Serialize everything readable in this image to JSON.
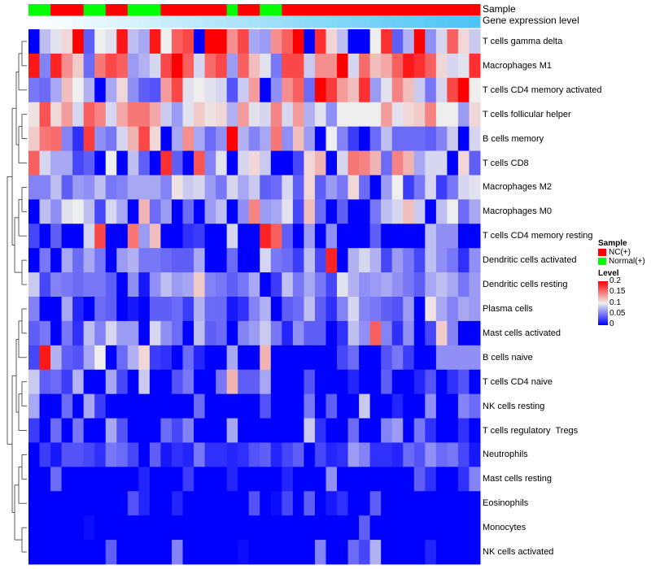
{
  "chart_data": {
    "type": "heatmap",
    "title": "",
    "annotations": {
      "sample_label": "Sample",
      "gene_label": "Gene expression level",
      "sample_groups": [
        "Normal(+)",
        "Normal(+)",
        "NC(+)",
        "NC(+)",
        "NC(+)",
        "Normal(+)",
        "Normal(+)",
        "NC(+)",
        "NC(+)",
        "Normal(+)",
        "Normal(+)",
        "Normal(+)",
        "NC(+)",
        "NC(+)",
        "NC(+)",
        "NC(+)",
        "NC(+)",
        "NC(+)",
        "Normal(+)",
        "NC(+)",
        "NC(+)",
        "Normal(+)",
        "Normal(+)",
        "NC(+)",
        "NC(+)",
        "NC(+)",
        "NC(+)",
        "NC(+)",
        "NC(+)",
        "NC(+)",
        "NC(+)",
        "NC(+)",
        "NC(+)",
        "NC(+)",
        "NC(+)",
        "NC(+)",
        "NC(+)",
        "NC(+)",
        "NC(+)",
        "NC(+)",
        "NC(+)"
      ],
      "gene_expression_gradient": [
        "#ffffff",
        "#4dc3f5"
      ]
    },
    "rows": [
      "T cells gamma delta",
      "Macrophages M1",
      "T cells CD4 memory activated",
      "T cells follicular helper",
      "B cells memory",
      "T cells CD8",
      "Macrophages M2",
      "Macrophages M0",
      "T cells CD4 memory resting",
      "Dendritic cells activated",
      "Dendritic cells resting",
      "Plasma cells",
      "Mast cells activated",
      "B cells naive",
      "T cells CD4 naive",
      "NK cells resting",
      "T cells regulatory  Tregs",
      "Neutrophils",
      "Mast cells resting",
      "Eosinophils",
      "Monocytes",
      "NK cells activated"
    ],
    "values": [
      [
        0,
        0.08,
        0.095,
        0.11,
        0.2,
        0.04,
        0.1,
        0.095,
        0.19,
        0.08,
        0.07,
        0.19,
        0.1,
        0.16,
        0.17,
        0,
        0.2,
        0.2,
        0.14,
        0.17,
        0.07,
        0.065,
        0.14,
        0.16,
        0.2,
        0,
        0.18,
        0.11,
        0.08,
        0,
        0,
        0.1,
        0.18,
        0.04,
        0.075,
        0.2,
        0.06,
        0.09,
        0.16,
        0.11,
        0.085
      ],
      [
        0.19,
        0.055,
        0.185,
        0.14,
        0.115,
        0.045,
        0.15,
        0.17,
        0.16,
        0.065,
        0.075,
        0.09,
        0.17,
        0.2,
        0.16,
        0.09,
        0.155,
        0.17,
        0.065,
        0.16,
        0.12,
        0.095,
        0.05,
        0.17,
        0.17,
        0.085,
        0.14,
        0.14,
        0.2,
        0.09,
        0.155,
        0.12,
        0.13,
        0.16,
        0.19,
        0.18,
        0.16,
        0.11,
        0.09,
        0.095,
        0.18
      ],
      [
        0.05,
        0.045,
        0.07,
        0.12,
        0.1,
        0.075,
        0,
        0.07,
        0.11,
        0.06,
        0.04,
        0.035,
        0.135,
        0.17,
        0.095,
        0.1,
        0.095,
        0.09,
        0.035,
        0.085,
        0.135,
        0,
        0.06,
        0.14,
        0.16,
        0.045,
        0.2,
        0.175,
        0.135,
        0.12,
        0.18,
        0.065,
        0.095,
        0.145,
        0.12,
        0.085,
        0.05,
        0.09,
        0.17,
        0.2,
        0.1
      ],
      [
        0.105,
        0.165,
        0.11,
        0.135,
        0.09,
        0.16,
        0.145,
        0.09,
        0.13,
        0.15,
        0.15,
        0.13,
        0.085,
        0.065,
        0.095,
        0.115,
        0.105,
        0.11,
        0.075,
        0.135,
        0.095,
        0.09,
        0.145,
        0.09,
        0.135,
        0.075,
        0.095,
        0.06,
        0.1,
        0.1,
        0.1,
        0.1,
        0.135,
        0.095,
        0.11,
        0.115,
        0.145,
        0.1,
        0.1,
        0.065,
        0.11
      ],
      [
        0.115,
        0.15,
        0.155,
        0.055,
        0.02,
        0.175,
        0.06,
        0.05,
        0.09,
        0.125,
        0.17,
        0.11,
        0,
        0.07,
        0.14,
        0.07,
        0.045,
        0.06,
        0.2,
        0.075,
        0.055,
        0.07,
        0.15,
        0.06,
        0.12,
        0.065,
        0,
        0.1,
        0.055,
        0.025,
        0,
        0.045,
        0.08,
        0.045,
        0.045,
        0.045,
        0.04,
        0.055,
        0.085,
        0,
        0.09
      ],
      [
        0.16,
        0.09,
        0.07,
        0.07,
        0.03,
        0.04,
        0,
        0.1,
        0,
        0.08,
        0.04,
        0,
        0.18,
        0.04,
        0,
        0.165,
        0.055,
        0.095,
        0,
        0.09,
        0.11,
        0.085,
        0,
        0,
        0.03,
        0.11,
        0.125,
        0,
        0.09,
        0.15,
        0.145,
        0.125,
        0.045,
        0.145,
        0.125,
        0.07,
        0.09,
        0.09,
        0,
        0.11,
        0.04
      ],
      [
        0.055,
        0.055,
        0.08,
        0.04,
        0.065,
        0.06,
        0.08,
        0.05,
        0.055,
        0.07,
        0.07,
        0.07,
        0.055,
        0.105,
        0.085,
        0.09,
        0.065,
        0.05,
        0.09,
        0.07,
        0.085,
        0.04,
        0.045,
        0.09,
        0.04,
        0.11,
        0.04,
        0.065,
        0.05,
        0.11,
        0.045,
        0,
        0.065,
        0.1,
        0.025,
        0.05,
        0.09,
        0.025,
        0.05,
        0.09,
        0.095
      ],
      [
        0,
        0.08,
        0.06,
        0.095,
        0.1,
        0.08,
        0.03,
        0.09,
        0.07,
        0,
        0.125,
        0.045,
        0.065,
        0,
        0.045,
        0,
        0.065,
        0.08,
        0,
        0.06,
        0.145,
        0.065,
        0.07,
        0.095,
        0.03,
        0.12,
        0.045,
        0,
        0.04,
        0,
        0,
        0.05,
        0.08,
        0.09,
        0.12,
        0.085,
        0,
        0.08,
        0.1,
        0.045,
        0.07
      ],
      [
        0.03,
        0,
        0.04,
        0,
        0,
        0.09,
        0.17,
        0,
        0,
        0.15,
        0.065,
        0.12,
        0,
        0,
        0.02,
        0.025,
        0,
        0,
        0.09,
        0,
        0,
        0.185,
        0.16,
        0.04,
        0,
        0.065,
        0,
        0.06,
        0,
        0,
        0,
        0.04,
        0,
        0,
        0,
        0,
        0.08,
        0.06,
        0.06,
        0,
        0
      ],
      [
        0,
        0.05,
        0,
        0.07,
        0.045,
        0.07,
        0.05,
        0,
        0.065,
        0.075,
        0.05,
        0.05,
        0.045,
        0.04,
        0.04,
        0.07,
        0,
        0,
        0.045,
        0,
        0,
        0.09,
        0.05,
        0.045,
        0.025,
        0.08,
        0.03,
        0.185,
        0,
        0.075,
        0.09,
        0.075,
        0.03,
        0.065,
        0.05,
        0.03,
        0.08,
        0.06,
        0.05,
        0.02,
        0.06
      ],
      [
        0.085,
        0.03,
        0.055,
        0.05,
        0.045,
        0.05,
        0.05,
        0.04,
        0,
        0.06,
        0.01,
        0.06,
        0.08,
        0.065,
        0.07,
        0.115,
        0.055,
        0.05,
        0.04,
        0.05,
        0.07,
        0,
        0.025,
        0.08,
        0.05,
        0.07,
        0.05,
        0.03,
        0.095,
        0.075,
        0.06,
        0.065,
        0.07,
        0.06,
        0.05,
        0.04,
        0.07,
        0.08,
        0.07,
        0.05,
        0.065
      ],
      [
        0.055,
        0,
        0,
        0.07,
        0.015,
        0,
        0.045,
        0.04,
        0,
        0.01,
        0,
        0.04,
        0.04,
        0.045,
        0.025,
        0.075,
        0.045,
        0.045,
        0.01,
        0.02,
        0.055,
        0.075,
        0,
        0.04,
        0.045,
        0.08,
        0.04,
        0.02,
        0.055,
        0.09,
        0.055,
        0.05,
        0.04,
        0.035,
        0.065,
        0,
        0.105,
        0.07,
        0.055,
        0.07,
        0.065
      ],
      [
        0.04,
        0.05,
        0,
        0.05,
        0.02,
        0.08,
        0.055,
        0.09,
        0.065,
        0.065,
        0,
        0.09,
        0.06,
        0.045,
        0,
        0.08,
        0.04,
        0.045,
        0,
        0.055,
        0.065,
        0.085,
        0.05,
        0.015,
        0.06,
        0.04,
        0.04,
        0,
        0.02,
        0.08,
        0.06,
        0.16,
        0.055,
        0.02,
        0.06,
        0,
        0.03,
        0.115,
        0.055,
        0,
        0
      ],
      [
        0.03,
        0.19,
        0.075,
        0.04,
        0.035,
        0.07,
        0.1,
        0,
        0.045,
        0.075,
        0.11,
        0.025,
        0.02,
        0,
        0.045,
        0.015,
        0,
        0,
        0.07,
        0,
        0,
        0.125,
        0,
        0,
        0,
        0,
        0,
        0,
        0.03,
        0.045,
        0,
        0,
        0.035,
        0.05,
        0.025,
        0,
        0,
        0.06,
        0.06,
        0.06,
        0.06
      ],
      [
        0.085,
        0.04,
        0.045,
        0.025,
        0.075,
        0,
        0,
        0.07,
        0.03,
        0,
        0.085,
        0,
        0,
        0.035,
        0.05,
        0,
        0,
        0.05,
        0.125,
        0.04,
        0.04,
        0.07,
        0,
        0,
        0,
        0.035,
        0,
        0,
        0,
        0.015,
        0,
        0,
        0.04,
        0,
        0,
        0.015,
        0.035,
        0,
        0.02,
        0.035,
        0
      ],
      [
        0.07,
        0,
        0,
        0.045,
        0,
        0.07,
        0.025,
        0,
        0,
        0,
        0,
        0,
        0,
        0,
        0,
        0.045,
        0,
        0,
        0,
        0,
        0,
        0.035,
        0,
        0,
        0,
        0.05,
        0,
        0.04,
        0,
        0,
        0.085,
        0,
        0,
        0.015,
        0,
        0,
        0.06,
        0,
        0,
        0.055,
        0.045
      ],
      [
        0.025,
        0,
        0.045,
        0,
        0.05,
        0,
        0,
        0.07,
        0.035,
        0,
        0,
        0,
        0.045,
        0.03,
        0.055,
        0,
        0,
        0,
        0.07,
        0,
        0,
        0,
        0,
        0,
        0,
        0.085,
        0.02,
        0,
        0,
        0.045,
        0,
        0,
        0.055,
        0.065,
        0,
        0.05,
        0.02,
        0,
        0,
        0.02,
        0
      ],
      [
        0,
        0.025,
        0.01,
        0.035,
        0.035,
        0.03,
        0.02,
        0.05,
        0.045,
        0.03,
        0,
        0.04,
        0.01,
        0.02,
        0.015,
        0.05,
        0.02,
        0.02,
        0.015,
        0.02,
        0.035,
        0.04,
        0.015,
        0.03,
        0.04,
        0,
        0.03,
        0.015,
        0.02,
        0.065,
        0.055,
        0.02,
        0.02,
        0.015,
        0.045,
        0.035,
        0.06,
        0.045,
        0.05,
        0.03,
        0.01
      ],
      [
        0,
        0,
        0.045,
        0,
        0,
        0,
        0,
        0,
        0,
        0,
        0.015,
        0,
        0,
        0,
        0.025,
        0,
        0,
        0,
        0.015,
        0,
        0,
        0,
        0,
        0.015,
        0,
        0,
        0,
        0.06,
        0,
        0,
        0,
        0,
        0,
        0,
        0,
        0.04,
        0.02,
        0,
        0,
        0.02,
        0.055
      ],
      [
        0,
        0,
        0,
        0,
        0,
        0,
        0,
        0,
        0,
        0.035,
        0.015,
        0,
        0,
        0.015,
        0,
        0,
        0,
        0,
        0,
        0,
        0.035,
        0,
        0.005,
        0.03,
        0,
        0.04,
        0,
        0.01,
        0.02,
        0,
        0,
        0.04,
        0,
        0,
        0,
        0,
        0,
        0,
        0,
        0,
        0
      ],
      [
        0,
        0,
        0,
        0,
        0,
        0.005,
        0,
        0,
        0,
        0,
        0,
        0,
        0,
        0,
        0,
        0,
        0,
        0,
        0,
        0,
        0,
        0,
        0,
        0,
        0,
        0,
        0,
        0,
        0,
        0,
        0.04,
        0,
        0,
        0,
        0,
        0,
        0,
        0,
        0,
        0,
        0
      ],
      [
        0,
        0,
        0,
        0,
        0,
        0,
        0,
        0.04,
        0,
        0,
        0,
        0,
        0,
        0.055,
        0,
        0,
        0,
        0,
        0,
        0.005,
        0,
        0,
        0,
        0,
        0,
        0,
        0.055,
        0,
        0,
        0.045,
        0.03,
        0.075,
        0,
        0,
        0,
        0,
        0.015,
        0,
        0,
        0,
        0
      ]
    ],
    "color_scale": {
      "low": "#0000ff",
      "mid": "#eeeeee",
      "high": "#ff0000",
      "min": 0,
      "max": 0.2
    },
    "legend": {
      "sample_title": "Sample",
      "groups": [
        {
          "name": "NC(+)",
          "color": "#ff0000"
        },
        {
          "name": "Normal(+)",
          "color": "#00ff00"
        }
      ],
      "level_title": "Level",
      "ticks": [
        "0.2",
        "0.15",
        "0.1",
        "0.05",
        "0"
      ],
      "placement": "right"
    }
  }
}
